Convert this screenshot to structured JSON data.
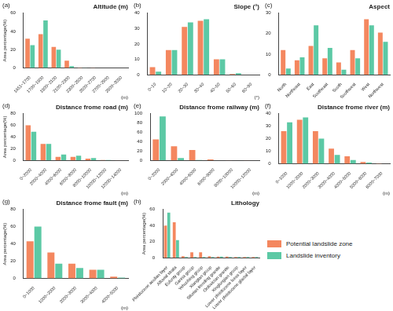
{
  "chart_data": [
    {
      "type": "bar",
      "title": "Altitude (m)",
      "annotations": [
        "(a)"
      ],
      "xlabel": "(m)",
      "ylabel": "Area percentage(%)",
      "categories": [
        "1451~1700",
        "1700~1900",
        "1900~2100",
        "2100~2300",
        "2300~2500",
        "2500~2700",
        "2700~2900",
        "2900~3050"
      ],
      "series": [
        {
          "name": "Potential landslide zone",
          "color": "#f4875f",
          "values": [
            32,
            37,
            23,
            8,
            0.5,
            0.2,
            0.1,
            0
          ]
        },
        {
          "name": "Landslide inventory",
          "color": "#5cc9a5",
          "values": [
            25,
            52,
            20,
            2,
            0.3,
            0,
            0,
            0
          ]
        }
      ],
      "ylim": [
        0,
        60
      ],
      "yticks": [
        0,
        20,
        40,
        60
      ],
      "grid": false
    },
    {
      "type": "bar",
      "title": "Slope (°)",
      "annotations": [
        "(b)"
      ],
      "xlabel": "(°)",
      "categories": [
        "0~10",
        "10~20",
        "20~30",
        "30~40",
        "40~50",
        "50~60",
        "60~80"
      ],
      "series": [
        {
          "name": "Potential landslide zone",
          "color": "#f4875f",
          "values": [
            5,
            16,
            31,
            35,
            10,
            0.5,
            0
          ]
        },
        {
          "name": "Landslide inventory",
          "color": "#5cc9a5",
          "values": [
            2,
            16,
            34,
            36,
            10,
            1,
            0
          ]
        }
      ],
      "ylim": [
        0,
        40
      ],
      "yticks": [
        0,
        10,
        20,
        30,
        40
      ],
      "grid": false
    },
    {
      "type": "bar",
      "title": "Aspect",
      "annotations": [
        "(c)"
      ],
      "categories": [
        "North",
        "Northeast",
        "East",
        "Southeast",
        "South",
        "Southwest",
        "West",
        "Northwest"
      ],
      "series": [
        {
          "name": "Potential landslide zone",
          "color": "#f4875f",
          "values": [
            12,
            7,
            14,
            8,
            6,
            12,
            27,
            20.5
          ]
        },
        {
          "name": "Landslide inventory",
          "color": "#5cc9a5",
          "values": [
            3,
            8.5,
            24,
            13,
            2.5,
            8,
            24,
            16
          ]
        }
      ],
      "ylim": [
        0,
        30
      ],
      "yticks": [
        0,
        10,
        20,
        30
      ],
      "grid": false
    },
    {
      "type": "bar",
      "title": "Distance frome road (m)",
      "annotations": [
        "(d)"
      ],
      "xlabel": "(m)",
      "ylabel": "Area percentage(%)",
      "categories": [
        "0~2000",
        "2000~4000",
        "4000~6000",
        "6000~8000",
        "8000~10000",
        "10000~12000",
        "12000~14000"
      ],
      "series": [
        {
          "name": "Potential landslide zone",
          "color": "#f4875f",
          "values": [
            60,
            28,
            6,
            6,
            3,
            0.5,
            0.2
          ]
        },
        {
          "name": "Landslide inventory",
          "color": "#5cc9a5",
          "values": [
            49,
            28,
            10,
            8,
            4,
            0.5,
            0
          ]
        }
      ],
      "ylim": [
        0,
        80
      ],
      "yticks": [
        0,
        20,
        40,
        60,
        80
      ],
      "grid": false
    },
    {
      "type": "bar",
      "title": "Distance frome railway (m)",
      "annotations": [
        "(e)"
      ],
      "xlabel": "(m)",
      "categories": [
        "0~2000",
        "2000~4000",
        "4000~6000",
        "6000~8000",
        "8000~10000",
        "10000~12000"
      ],
      "series": [
        {
          "name": "Potential landslide zone",
          "color": "#f4875f",
          "values": [
            45,
            30,
            22,
            2,
            0.5,
            0.2
          ]
        },
        {
          "name": "Landslide inventory",
          "color": "#5cc9a5",
          "values": [
            94,
            5,
            1,
            0,
            0,
            0
          ]
        }
      ],
      "ylim": [
        0,
        100
      ],
      "yticks": [
        0,
        20,
        40,
        60,
        80,
        100
      ],
      "grid": false
    },
    {
      "type": "bar",
      "title": "Distance frome river (m)",
      "annotations": [
        "(f)"
      ],
      "xlabel": "(m)",
      "categories": [
        "0~1000",
        "1000~2000",
        "2000~3000",
        "3000~4000",
        "4000~5000",
        "5000~6000",
        "6000~7000"
      ],
      "series": [
        {
          "name": "Potential landslide zone",
          "color": "#f4875f",
          "values": [
            26,
            35,
            26,
            12,
            6,
            1.5,
            0.3
          ]
        },
        {
          "name": "Landslide inventory",
          "color": "#5cc9a5",
          "values": [
            33,
            37,
            20,
            7,
            3,
            1,
            0
          ]
        }
      ],
      "ylim": [
        0,
        40
      ],
      "yticks": [
        0,
        10,
        20,
        30,
        40
      ],
      "grid": false
    },
    {
      "type": "bar",
      "title": "Distance frome fault (m)",
      "annotations": [
        "(g)"
      ],
      "xlabel": "(m)",
      "ylabel": "Area percentage(%)",
      "categories": [
        "0~1000",
        "1000~2000",
        "2000~3000",
        "3000~4000",
        "4000~5000"
      ],
      "series": [
        {
          "name": "Potential landslide zone",
          "color": "#f4875f",
          "values": [
            43,
            30,
            17,
            10,
            2
          ]
        },
        {
          "name": "Landslide inventory",
          "color": "#5cc9a5",
          "values": [
            60,
            17,
            12,
            10,
            1
          ]
        }
      ],
      "ylim": [
        0,
        80
      ],
      "yticks": [
        0,
        20,
        40,
        60,
        80
      ],
      "grid": false
    },
    {
      "type": "bar",
      "title": "Lithology",
      "annotations": [
        "(h)"
      ],
      "ylabel": "Area percentage(%)",
      "legend": "right",
      "categories": [
        "Pleistocene aeolian layer",
        "Alluvial strata",
        "Eulunty group",
        "Ganna group",
        "Yehuohing group",
        "Xiangtan group",
        "Silurian trending granite",
        "Ordovician granite",
        "Xinglongian group",
        "Lower pleistocene loess layer",
        "Lower pleistocene glacial layer"
      ],
      "series": [
        {
          "name": "Potential landslide zone",
          "color": "#f4875f",
          "values": [
            40,
            44,
            2,
            7,
            7,
            2,
            1.5,
            1.5,
            1,
            1,
            1
          ]
        },
        {
          "name": "Landslide inventory",
          "color": "#5cc9a5",
          "values": [
            56,
            22,
            1,
            1,
            1,
            1,
            1.5,
            1,
            1,
            1,
            1
          ]
        }
      ],
      "ylim": [
        0,
        60
      ],
      "yticks": [
        0,
        20,
        40,
        60
      ],
      "grid": false
    }
  ]
}
